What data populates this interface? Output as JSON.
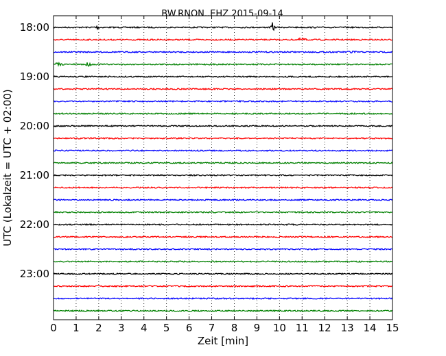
{
  "chart_data": {
    "type": "line",
    "title": "BW.RNON..EHZ 2015-09-14",
    "xlabel": "Zeit  [min]",
    "ylabel": "UTC (Lokalzeit = UTC + 02:00)",
    "xlim": [
      0,
      15
    ],
    "x_ticks": [
      0,
      1,
      2,
      3,
      4,
      5,
      6,
      7,
      8,
      9,
      10,
      11,
      12,
      13,
      14,
      15
    ],
    "x_tick_labels": [
      "0",
      "1",
      "2",
      "3",
      "4",
      "5",
      "6",
      "7",
      "8",
      "9",
      "10",
      "11",
      "12",
      "13",
      "14",
      "15"
    ],
    "y_tick_labels": [
      "18:00",
      "19:00",
      "20:00",
      "21:00",
      "22:00",
      "23:00"
    ],
    "grid": "vertical dotted",
    "trace_interval_min": 15,
    "trace_colors": [
      "#000000",
      "#ff0000",
      "#0000ff",
      "#008000"
    ],
    "traces": [
      {
        "start": "18:00"
      },
      {
        "start": "18:15"
      },
      {
        "start": "18:30"
      },
      {
        "start": "18:45"
      },
      {
        "start": "19:00"
      },
      {
        "start": "19:15"
      },
      {
        "start": "19:30"
      },
      {
        "start": "19:45"
      },
      {
        "start": "20:00"
      },
      {
        "start": "20:15"
      },
      {
        "start": "20:30"
      },
      {
        "start": "20:45"
      },
      {
        "start": "21:00"
      },
      {
        "start": "21:15"
      },
      {
        "start": "21:30"
      },
      {
        "start": "21:45"
      },
      {
        "start": "22:00"
      },
      {
        "start": "22:15"
      },
      {
        "start": "22:30"
      },
      {
        "start": "22:45"
      },
      {
        "start": "23:00"
      },
      {
        "start": "23:15"
      },
      {
        "start": "23:30"
      },
      {
        "start": "23:45"
      }
    ],
    "events": [
      {
        "trace": 0,
        "minute": 9.7,
        "type": "spike"
      },
      {
        "trace": 0,
        "minute": 1.9,
        "type": "burst"
      },
      {
        "trace": 1,
        "minute": 11.0,
        "type": "burst"
      },
      {
        "trace": 2,
        "minute": 13.2,
        "type": "burst"
      },
      {
        "trace": 3,
        "minute": 0.2,
        "type": "burst"
      },
      {
        "trace": 3,
        "minute": 1.5,
        "type": "burst"
      }
    ]
  }
}
